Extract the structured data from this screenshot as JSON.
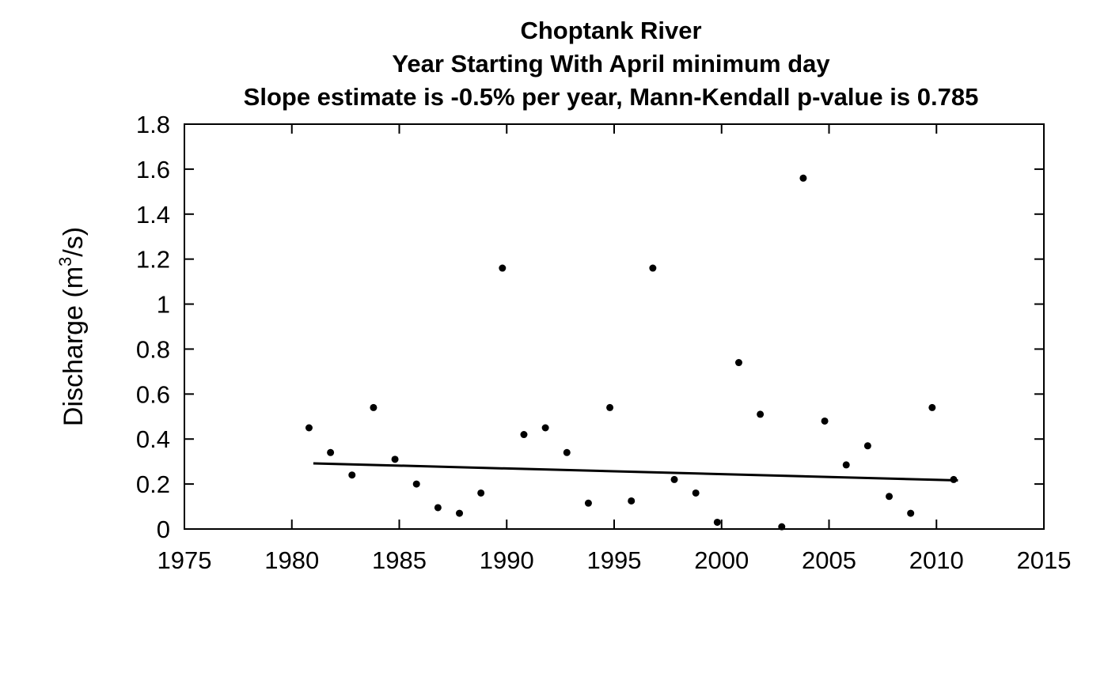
{
  "chart_data": {
    "type": "scatter",
    "title_lines": [
      "Choptank River",
      "Year Starting With April  minimum day",
      "Slope estimate is -0.5% per year, Mann-Kendall p-value is 0.785"
    ],
    "xlabel": "",
    "ylabel": {
      "prefix": "Discharge (m",
      "superscript": "3",
      "suffix": "/s)"
    },
    "xlim": [
      1975,
      2015
    ],
    "ylim": [
      0,
      1.8
    ],
    "x_ticks": [
      1975,
      1980,
      1985,
      1990,
      1995,
      2000,
      2005,
      2010,
      2015
    ],
    "y_ticks": [
      0,
      0.2,
      0.4,
      0.6,
      0.8,
      1,
      1.2,
      1.4,
      1.6,
      1.8
    ],
    "y_tick_labels": [
      "0",
      "0.2",
      "0.4",
      "0.6",
      "0.8",
      "1",
      "1.2",
      "1.4",
      "1.6",
      "1.8"
    ],
    "grid": false,
    "points": {
      "x": [
        1981,
        1982,
        1983,
        1984,
        1985,
        1986,
        1987,
        1988,
        1989,
        1990,
        1991,
        1992,
        1993,
        1994,
        1995,
        1996,
        1997,
        1998,
        1999,
        2000,
        2001,
        2002,
        2003,
        2004,
        2005,
        2006,
        2007,
        2008,
        2009,
        2010,
        2011
      ],
      "y": [
        0.45,
        0.34,
        0.24,
        0.54,
        0.31,
        0.2,
        0.095,
        0.07,
        0.16,
        1.16,
        0.42,
        0.45,
        0.34,
        0.115,
        0.54,
        0.125,
        1.16,
        0.22,
        0.16,
        0.03,
        0.74,
        0.51,
        0.01,
        1.56,
        0.48,
        0.285,
        0.37,
        0.145,
        0.07,
        0.54,
        0.22
      ]
    },
    "trend_line": {
      "x": [
        1981,
        2011
      ],
      "y": [
        0.292,
        0.216
      ]
    },
    "colors": {
      "points": "#000000",
      "line": "#000000",
      "axes": "#000000"
    }
  }
}
